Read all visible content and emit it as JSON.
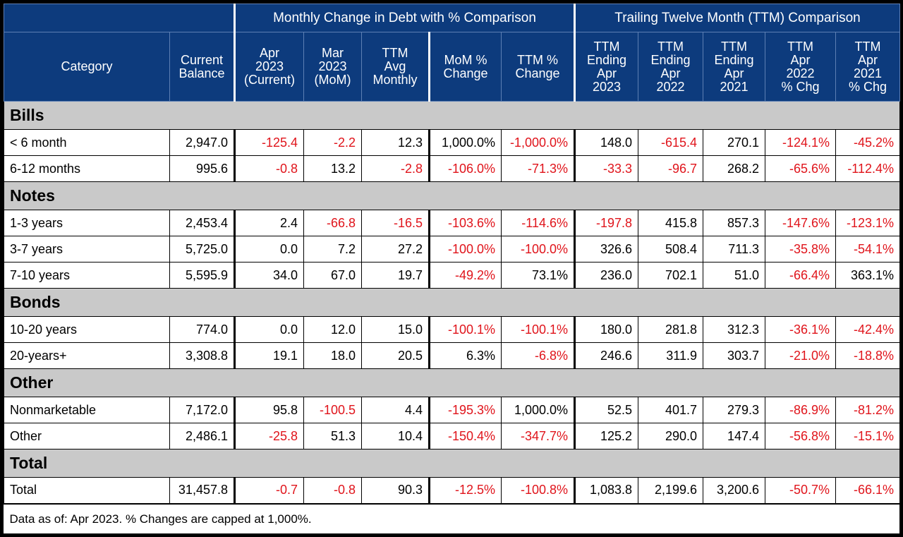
{
  "header": {
    "groups": [
      "Monthly Change in Debt with % Comparison",
      "Trailing Twelve Month (TTM) Comparison"
    ],
    "columns": [
      "Category",
      "Current\nBalance",
      "Apr\n2023\n(Current)",
      "Mar\n2023\n(MoM)",
      "TTM\nAvg\nMonthly",
      "MoM %\nChange",
      "TTM %\nChange",
      "TTM\nEnding\nApr\n2023",
      "TTM\nEnding\nApr\n2022",
      "TTM\nEnding\nApr\n2021",
      "TTM\nApr\n2022\n% Chg",
      "TTM\nApr\n2021\n% Chg"
    ]
  },
  "sections": [
    {
      "title": "Bills",
      "rows": [
        [
          "< 6 month",
          "2,947.0",
          "-125.4",
          "-2.2",
          "12.3",
          "1,000.0%",
          "-1,000.0%",
          "148.0",
          "-615.4",
          "270.1",
          "-124.1%",
          "-45.2%"
        ],
        [
          "6-12 months",
          "995.6",
          "-0.8",
          "13.2",
          "-2.8",
          "-106.0%",
          "-71.3%",
          "-33.3",
          "-96.7",
          "268.2",
          "-65.6%",
          "-112.4%"
        ]
      ]
    },
    {
      "title": "Notes",
      "rows": [
        [
          "1-3 years",
          "2,453.4",
          "2.4",
          "-66.8",
          "-16.5",
          "-103.6%",
          "-114.6%",
          "-197.8",
          "415.8",
          "857.3",
          "-147.6%",
          "-123.1%"
        ],
        [
          "3-7 years",
          "5,725.0",
          "0.0",
          "7.2",
          "27.2",
          "-100.0%",
          "-100.0%",
          "326.6",
          "508.4",
          "711.3",
          "-35.8%",
          "-54.1%"
        ],
        [
          "7-10 years",
          "5,595.9",
          "34.0",
          "67.0",
          "19.7",
          "-49.2%",
          "73.1%",
          "236.0",
          "702.1",
          "51.0",
          "-66.4%",
          "363.1%"
        ]
      ]
    },
    {
      "title": "Bonds",
      "rows": [
        [
          "10-20 years",
          "774.0",
          "0.0",
          "12.0",
          "15.0",
          "-100.1%",
          "-100.1%",
          "180.0",
          "281.8",
          "312.3",
          "-36.1%",
          "-42.4%"
        ],
        [
          "20-years+",
          "3,308.8",
          "19.1",
          "18.0",
          "20.5",
          "6.3%",
          "-6.8%",
          "246.6",
          "311.9",
          "303.7",
          "-21.0%",
          "-18.8%"
        ]
      ]
    },
    {
      "title": "Other",
      "rows": [
        [
          "Nonmarketable",
          "7,172.0",
          "95.8",
          "-100.5",
          "4.4",
          "-195.3%",
          "1,000.0%",
          "52.5",
          "401.7",
          "279.3",
          "-86.9%",
          "-81.2%"
        ],
        [
          "Other",
          "2,486.1",
          "-25.8",
          "51.3",
          "10.4",
          "-150.4%",
          "-347.7%",
          "125.2",
          "290.0",
          "147.4",
          "-56.8%",
          "-15.1%"
        ]
      ]
    },
    {
      "title": "Total",
      "rows": [
        [
          "Total",
          "31,457.8",
          "-0.7",
          "-0.8",
          "90.3",
          "-12.5%",
          "-100.8%",
          "1,083.8",
          "2,199.6",
          "3,200.6",
          "-50.7%",
          "-66.1%"
        ]
      ]
    }
  ],
  "footer": "Data as of: Apr 2023. % Changes are capped at 1,000%."
}
